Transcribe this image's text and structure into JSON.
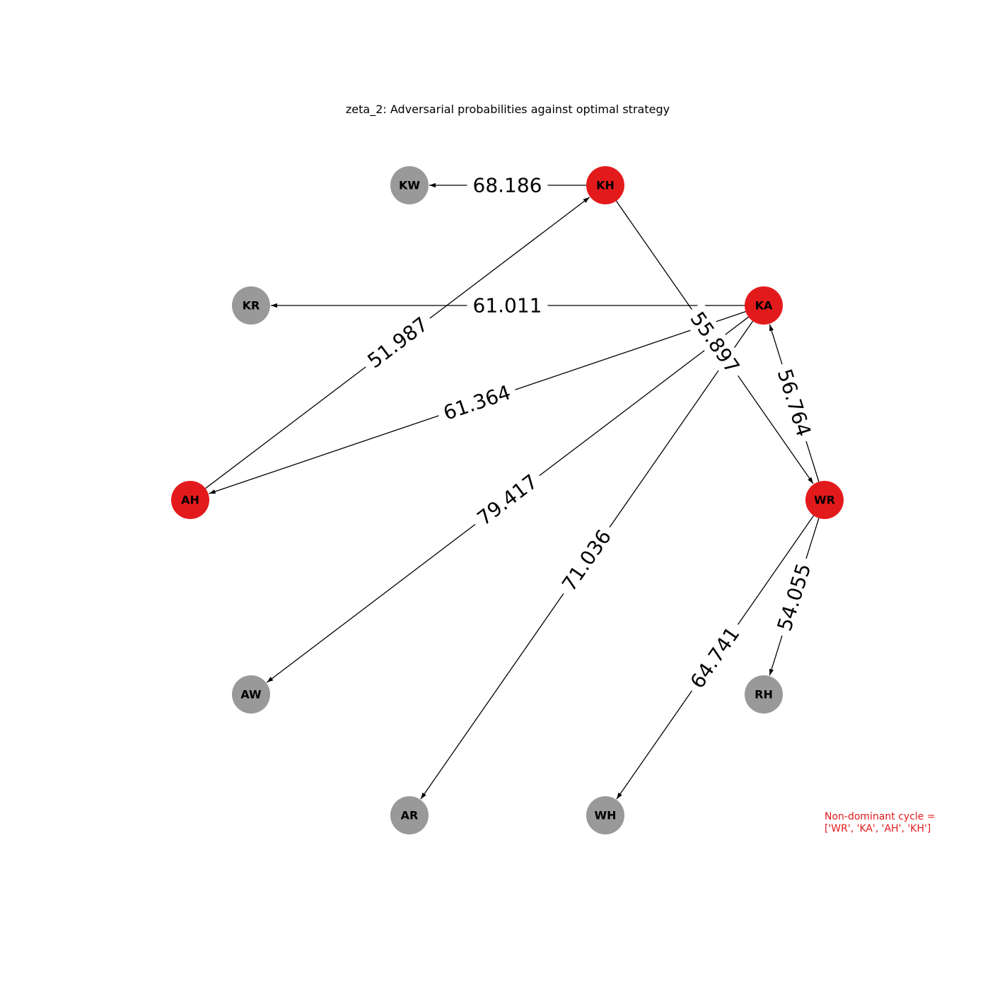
{
  "title": "zeta_2: Adversarial probabilities against optimal strategy",
  "colors": {
    "highlight": "#e31a1c",
    "default": "#999999",
    "edge": "#000000",
    "note": "#e31a1c"
  },
  "nodes": [
    {
      "id": "KW",
      "label": "KW",
      "highlight": false
    },
    {
      "id": "KH",
      "label": "KH",
      "highlight": true
    },
    {
      "id": "KR",
      "label": "KR",
      "highlight": false
    },
    {
      "id": "KA",
      "label": "KA",
      "highlight": true
    },
    {
      "id": "AH",
      "label": "AH",
      "highlight": true
    },
    {
      "id": "WR",
      "label": "WR",
      "highlight": true
    },
    {
      "id": "AW",
      "label": "AW",
      "highlight": false
    },
    {
      "id": "RH",
      "label": "RH",
      "highlight": false
    },
    {
      "id": "AR",
      "label": "AR",
      "highlight": false
    },
    {
      "id": "WH",
      "label": "WH",
      "highlight": false
    }
  ],
  "edges": [
    {
      "from": "KH",
      "to": "KW",
      "label": "68.186"
    },
    {
      "from": "KA",
      "to": "KR",
      "label": "61.011"
    },
    {
      "from": "AH",
      "to": "KH",
      "label": "51.987"
    },
    {
      "from": "KA",
      "to": "AH",
      "label": "61.364"
    },
    {
      "from": "KH",
      "to": "WR",
      "label": "55.897"
    },
    {
      "from": "WR",
      "to": "KA",
      "label": "56.764"
    },
    {
      "from": "KA",
      "to": "AW",
      "label": "79.417"
    },
    {
      "from": "KA",
      "to": "AR",
      "label": "71.036"
    },
    {
      "from": "WR",
      "to": "WH",
      "label": "64.741"
    },
    {
      "from": "WR",
      "to": "RH",
      "label": "54.055"
    }
  ],
  "note": {
    "line1": "Non-dominant cycle =",
    "line2": "['WR', 'KA', 'AH', 'KH']"
  }
}
